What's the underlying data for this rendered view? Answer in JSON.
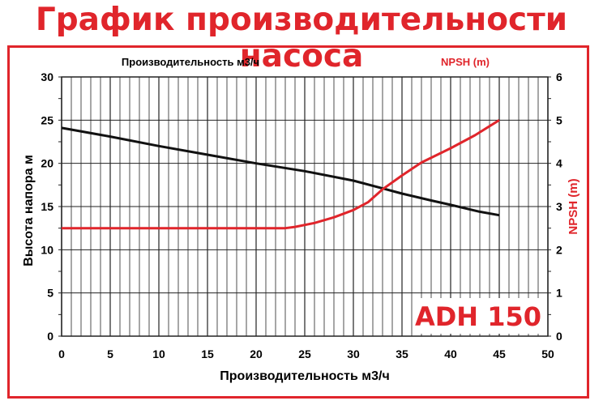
{
  "title": "График производительности насоса",
  "model_label": "ADH 150",
  "colors": {
    "accent": "#e0252b",
    "head": "#111111",
    "npsh": "#e0252b"
  },
  "chart_data": {
    "type": "line",
    "top_label": "Производительность м3/ч",
    "right_top_label": "NPSH (m)",
    "xlabel": "Производительность м3/ч",
    "ylabel": "Высота напора м",
    "y2label": "NPSH (m)",
    "xlim": [
      0,
      50
    ],
    "ylim": [
      0,
      30
    ],
    "y2lim": [
      0,
      6
    ],
    "xticks": [
      0,
      5,
      10,
      15,
      20,
      25,
      30,
      35,
      40,
      45,
      50
    ],
    "yticks": [
      0,
      5,
      10,
      15,
      20,
      25,
      30
    ],
    "y2ticks": [
      0,
      1,
      2,
      3,
      4,
      5,
      6
    ],
    "grid": true,
    "series": [
      {
        "axis": "left",
        "color": "#111111",
        "x": [
          0,
          5,
          10,
          15,
          20,
          25,
          30,
          33,
          35,
          38,
          40,
          43,
          45
        ],
        "y": [
          24.1,
          23.1,
          22,
          21,
          20,
          19.1,
          18,
          17.1,
          16.5,
          15.7,
          15.2,
          14.4,
          14
        ]
      },
      {
        "axis": "right",
        "color": "#e0252b",
        "x": [
          0,
          10,
          20,
          23,
          24,
          26,
          28,
          30,
          31.5,
          33,
          35,
          37,
          40,
          42.5,
          45
        ],
        "y": [
          2.5,
          2.5,
          2.5,
          2.5,
          2.53,
          2.62,
          2.75,
          2.92,
          3.1,
          3.4,
          3.72,
          4.02,
          4.35,
          4.65,
          5
        ]
      }
    ]
  }
}
